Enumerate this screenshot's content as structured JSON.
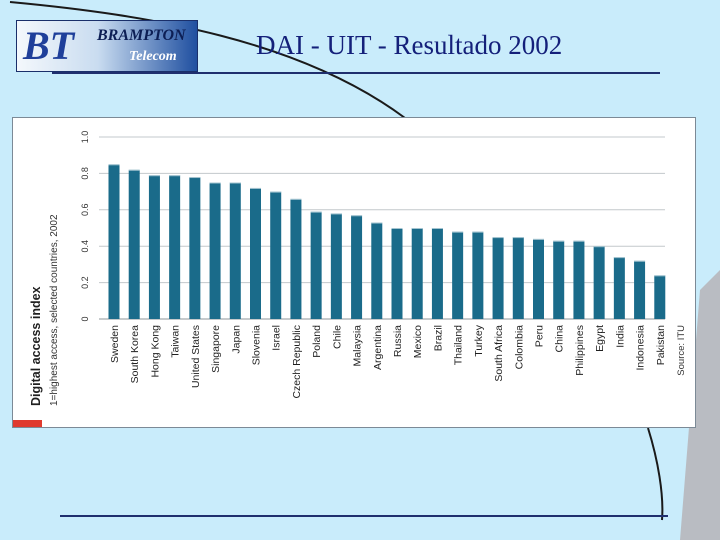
{
  "header": {
    "logo_mark": "BT",
    "logo_line1": "BRAMPTON",
    "logo_line2": "Telecom",
    "title": "DAI  - UIT - Resultado 2002"
  },
  "colors": {
    "bar": "#1a6b8a",
    "grid": "#c3c8cc",
    "title": "#14207a",
    "background": "#c9ecfb",
    "accent_red": "#e03a2e"
  },
  "chart_data": {
    "type": "bar",
    "ylabel": "Digital access index",
    "ysublabel": "1=highest access, selected countries, 2002",
    "source": "Source: ITU",
    "ylim": [
      0,
      1.0
    ],
    "yticks": [
      "0",
      "0.2",
      "0.4",
      "0.6",
      "0.8",
      "1.0"
    ],
    "grid": true,
    "categories": [
      "Sweden",
      "South Korea",
      "Hong Kong",
      "Taiwan",
      "United States",
      "Singapore",
      "Japan",
      "Slovenia",
      "Israel",
      "Czech Republic",
      "Poland",
      "Chile",
      "Malaysia",
      "Argentina",
      "Russia",
      "Mexico",
      "Brazil",
      "Thailand",
      "Turkey",
      "South Africa",
      "Colombia",
      "Peru",
      "China",
      "Philippines",
      "Egypt",
      "India",
      "Indonesia",
      "Pakistan"
    ],
    "values": [
      0.85,
      0.82,
      0.79,
      0.79,
      0.78,
      0.75,
      0.75,
      0.72,
      0.7,
      0.66,
      0.59,
      0.58,
      0.57,
      0.53,
      0.5,
      0.5,
      0.5,
      0.48,
      0.48,
      0.45,
      0.45,
      0.44,
      0.43,
      0.43,
      0.4,
      0.34,
      0.32,
      0.24
    ]
  }
}
